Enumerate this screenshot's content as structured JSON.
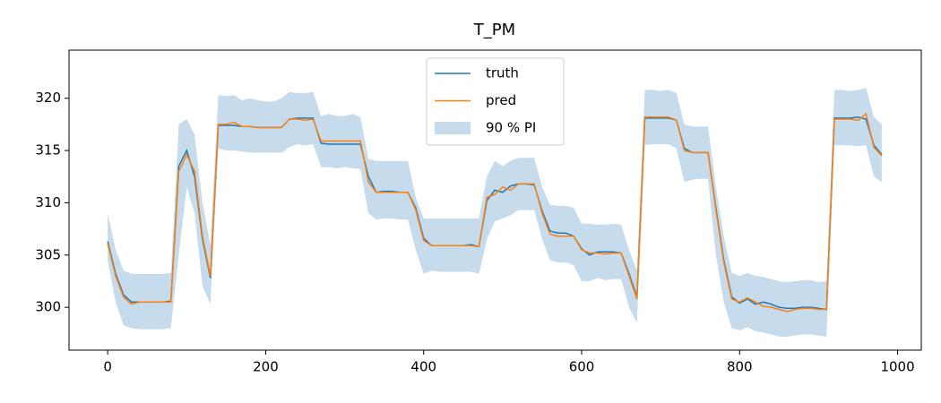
{
  "chart_data": {
    "type": "line",
    "title": "T_PM",
    "x": [
      0,
      10,
      20,
      30,
      40,
      50,
      60,
      70,
      80,
      90,
      100,
      110,
      120,
      130,
      140,
      150,
      160,
      170,
      180,
      190,
      200,
      210,
      220,
      230,
      240,
      250,
      260,
      270,
      280,
      290,
      300,
      310,
      320,
      330,
      340,
      350,
      360,
      370,
      380,
      390,
      400,
      410,
      420,
      430,
      440,
      450,
      460,
      470,
      480,
      490,
      500,
      510,
      520,
      530,
      540,
      550,
      560,
      570,
      580,
      590,
      600,
      610,
      620,
      630,
      640,
      650,
      660,
      670,
      680,
      690,
      700,
      710,
      720,
      730,
      740,
      750,
      760,
      770,
      780,
      790,
      800,
      810,
      820,
      830,
      840,
      850,
      860,
      870,
      880,
      890,
      900,
      910,
      920,
      930,
      940,
      950,
      960,
      970,
      980
    ],
    "series": [
      {
        "name": "truth",
        "color": "#1f77b4",
        "values": [
          306.3,
          303.2,
          301.2,
          300.5,
          300.5,
          300.5,
          300.5,
          300.5,
          300.6,
          313.5,
          315,
          312.5,
          306.5,
          302.8,
          317.4,
          317.4,
          317.4,
          317.3,
          317.3,
          317.2,
          317.2,
          317.2,
          317.2,
          318.0,
          318.1,
          318.1,
          318.1,
          315.7,
          315.6,
          315.6,
          315.6,
          315.6,
          315.6,
          312.5,
          311,
          311.1,
          311.1,
          311,
          311,
          309.5,
          306.6,
          305.9,
          305.9,
          305.9,
          305.9,
          305.9,
          306,
          305.8,
          310.2,
          311.2,
          311,
          311.6,
          311.8,
          311.8,
          311.7,
          309.2,
          307.3,
          307.1,
          307.1,
          306.8,
          305.6,
          305,
          305.3,
          305.3,
          305.3,
          305.2,
          303.2,
          301,
          318.1,
          318.1,
          318.1,
          318.1,
          317.9,
          315.2,
          314.8,
          314.8,
          314.8,
          309.5,
          304.5,
          301,
          300.4,
          300.8,
          300.3,
          300.5,
          300.3,
          300,
          299.9,
          299.9,
          300,
          300,
          299.9,
          299.8,
          318.1,
          318.1,
          318.1,
          318.2,
          318,
          315.5,
          314.6
        ]
      },
      {
        "name": "pred",
        "color": "#ff7f0e",
        "values": [
          306.1,
          303,
          301,
          300.3,
          300.5,
          300.5,
          300.5,
          300.5,
          300.5,
          313,
          314.6,
          313,
          306.8,
          303,
          317.5,
          317.5,
          317.7,
          317.3,
          317.3,
          317.2,
          317.2,
          317.2,
          317.2,
          318,
          318,
          317.9,
          318,
          315.9,
          315.9,
          315.9,
          315.9,
          315.9,
          315.9,
          312,
          311,
          311,
          311,
          311,
          311,
          309.3,
          306.4,
          305.9,
          305.9,
          305.9,
          305.9,
          305.9,
          305.9,
          305.8,
          310.5,
          310.8,
          311.5,
          311.2,
          311.8,
          311.8,
          311.8,
          309,
          307,
          306.8,
          306.8,
          306.8,
          305.5,
          305.2,
          305.2,
          305.1,
          305.2,
          305.2,
          303,
          300.8,
          318.2,
          318.2,
          318.2,
          318.2,
          317.9,
          315,
          314.8,
          314.8,
          314.8,
          309.3,
          304.3,
          300.8,
          300.5,
          300.9,
          300.5,
          300.1,
          300,
          299.8,
          299.6,
          299.8,
          299.9,
          299.9,
          299.8,
          299.8,
          318,
          318,
          318,
          317.9,
          318.5,
          315.3,
          314.5
        ]
      },
      {
        "name": "90 % PI",
        "color": "#c6dcec",
        "lower": [
          304.5,
          300.5,
          298.3,
          298,
          297.9,
          297.9,
          297.9,
          297.9,
          298,
          305,
          311.5,
          309,
          302,
          300.3,
          315.2,
          315,
          315,
          314.9,
          314.8,
          314.8,
          314.8,
          314.8,
          314.8,
          315.3,
          315.6,
          315.5,
          315.6,
          313.4,
          313.4,
          313.3,
          313.4,
          313.3,
          313.2,
          309,
          308.4,
          308.5,
          308.5,
          308.4,
          308.4,
          305.5,
          303.2,
          303.5,
          303.4,
          303.4,
          303.4,
          303.4,
          303.4,
          303.2,
          306.5,
          308.2,
          308.5,
          308.8,
          309.3,
          309.3,
          309.3,
          306.5,
          304.5,
          304.3,
          304.3,
          304,
          302.5,
          302.5,
          302.8,
          302.6,
          302.7,
          302.7,
          300,
          298.5,
          315.5,
          315.6,
          315.6,
          315.6,
          315.2,
          312,
          312.2,
          312.3,
          312.3,
          305,
          300.5,
          298,
          297.8,
          298.1,
          297.7,
          297.6,
          297.4,
          297.2,
          297.2,
          297.3,
          297.4,
          297.4,
          297.3,
          297.2,
          315.5,
          315.5,
          315.5,
          315.4,
          315.5,
          312.5,
          312
        ],
        "upper": [
          309,
          305.5,
          303.5,
          303.2,
          303.2,
          303.2,
          303.2,
          303.2,
          303.3,
          317.5,
          318,
          316.5,
          310,
          306,
          320.3,
          320.2,
          320.3,
          319.8,
          320,
          319.8,
          319.7,
          319.7,
          320,
          320.6,
          320.5,
          320.5,
          320.6,
          318.3,
          318.5,
          318.3,
          318.3,
          318.5,
          318.2,
          314.2,
          314,
          314,
          314,
          314,
          314,
          310.5,
          308.5,
          308.5,
          308.5,
          308.5,
          308.5,
          308.5,
          308.5,
          308.5,
          312.5,
          314,
          313.5,
          314,
          314.3,
          314.3,
          314.3,
          311.5,
          309.8,
          309.7,
          309.7,
          309.5,
          308,
          308,
          307.9,
          307.9,
          308,
          307.9,
          305.5,
          303.5,
          320.8,
          320.8,
          320.7,
          320.8,
          320.5,
          317.5,
          317.3,
          317.3,
          317.3,
          311.5,
          306.8,
          303.3,
          303,
          303.3,
          303,
          302.9,
          302.7,
          302.5,
          302.4,
          302.5,
          302.6,
          302.6,
          302.4,
          302.5,
          320.8,
          320.8,
          320.7,
          320.8,
          321,
          318.2,
          317.5
        ]
      }
    ],
    "xlim": [
      -49,
      1030
    ],
    "ylim": [
      295.9,
      324.6
    ],
    "xticks": [
      0,
      200,
      400,
      600,
      800,
      1000
    ],
    "yticks": [
      300,
      305,
      310,
      315,
      320
    ],
    "legend": "upper center"
  }
}
